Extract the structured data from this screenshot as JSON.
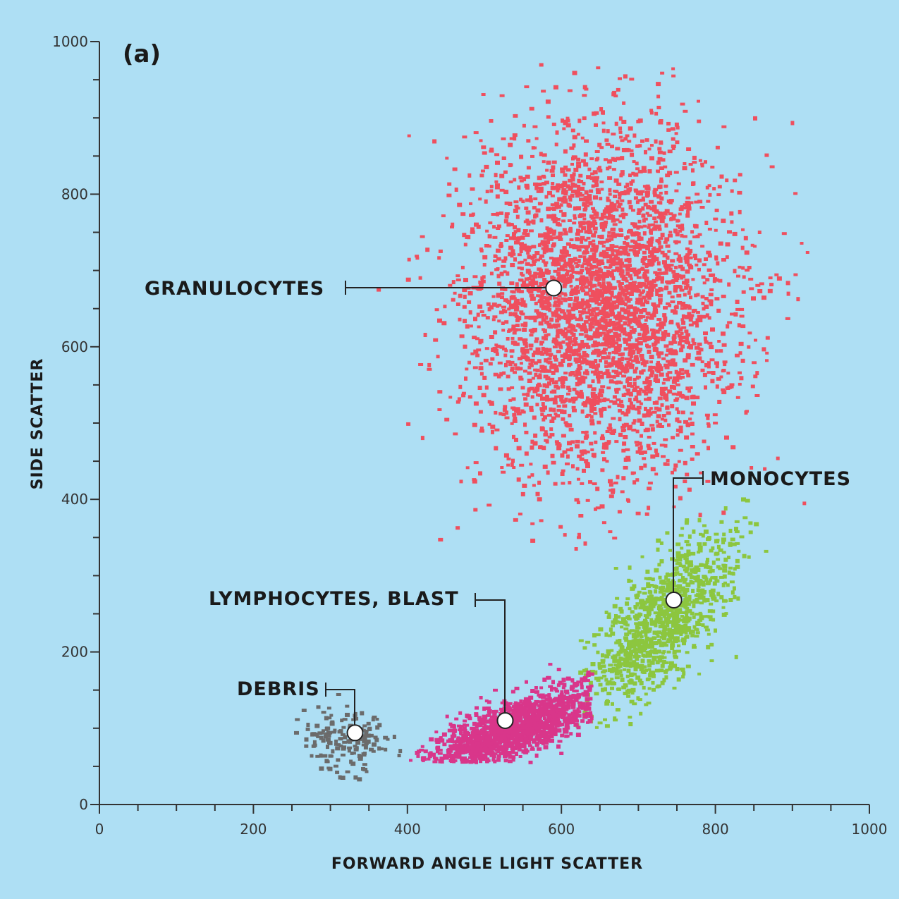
{
  "chart_data": {
    "type": "scatter",
    "panel_label": "(a)",
    "xlabel": "FORWARD ANGLE LIGHT SCATTER",
    "ylabel": "SIDE SCATTER",
    "xlim": [
      0,
      1000
    ],
    "ylim": [
      0,
      1000
    ],
    "xticks": [
      0,
      200,
      400,
      600,
      800,
      1000
    ],
    "yticks": [
      0,
      200,
      400,
      600,
      800,
      1000
    ],
    "grid": false,
    "series": [
      {
        "name": "GRANULOCYTES",
        "color": "#ef4f5e",
        "approx_points": 3500,
        "center": [
          650,
          660
        ],
        "spread": [
          85,
          115
        ],
        "x_range": [
          270,
          930
        ],
        "y_range": [
          335,
          975
        ]
      },
      {
        "name": "MONOCYTES",
        "color": "#8cc63f",
        "approx_points": 1000,
        "center": [
          730,
          240
        ],
        "spread": [
          45,
          55
        ],
        "x_range": [
          620,
          880
        ],
        "y_range": [
          100,
          410
        ]
      },
      {
        "name": "LYMPHOCYTES, BLAST",
        "color": "#d9368a",
        "approx_points": 1500,
        "center": [
          540,
          100
        ],
        "spread": [
          55,
          18
        ],
        "x_range": [
          400,
          640
        ],
        "y_range": [
          55,
          200
        ]
      },
      {
        "name": "DEBRIS",
        "color": "#6b6b6b",
        "approx_points": 160,
        "center": [
          320,
          85
        ],
        "spread": [
          30,
          22
        ],
        "x_range": [
          255,
          400
        ],
        "y_range": [
          30,
          200
        ]
      }
    ],
    "annotations": [
      {
        "text": "GRANULOCYTES",
        "point": [
          590,
          677
        ]
      },
      {
        "text": "MONOCYTES",
        "point": [
          746,
          268
        ]
      },
      {
        "text": "LYMPHOCYTES, BLAST",
        "point": [
          527,
          110
        ]
      },
      {
        "text": "DEBRIS",
        "point": [
          332,
          94
        ]
      }
    ]
  }
}
